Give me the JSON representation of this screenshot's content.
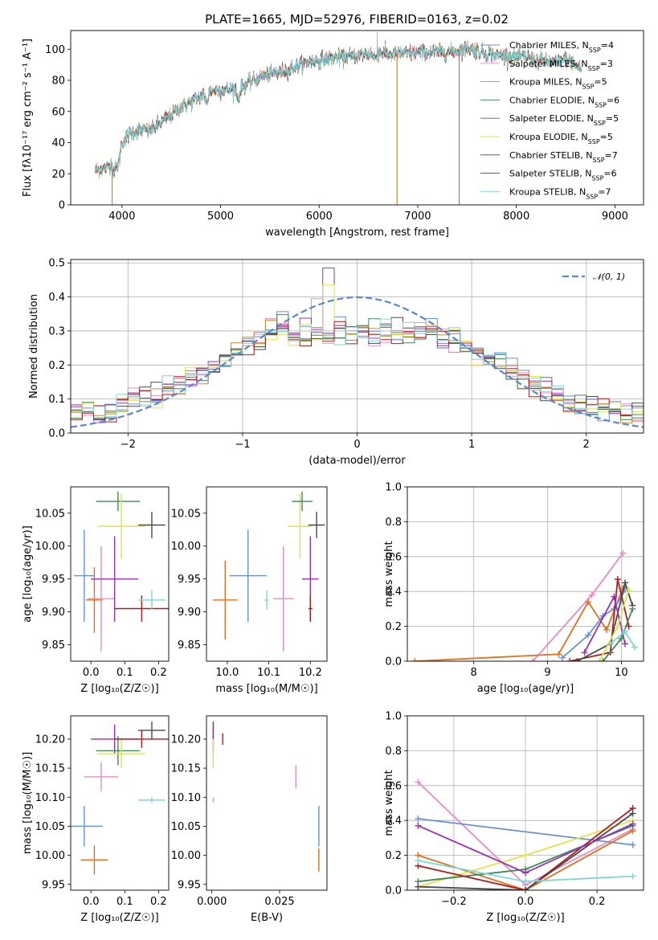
{
  "title": "PLATE=1665, MJD=52976, FIBERID=0163, z=0.02",
  "colors": {
    "Chabrier MILES": "#6b8fd6",
    "Salpeter MILES": "#e98ac6",
    "Kroupa MILES": "#c98a2a",
    "Chabrier ELODIE": "#3f8a55",
    "Salpeter ELODIE": "#9a2fb8",
    "Kroupa ELODIE": "#e0e34a",
    "Chabrier STELIB": "#4a4a4a",
    "Salpeter STELIB": "#b01b1b",
    "Kroupa STELIB": "#7fd6d6",
    "orange": "#e0701c",
    "lime": "#cde84a",
    "gaussian": "#5b86d0"
  },
  "chart_data": [
    {
      "id": "spectrum",
      "type": "line",
      "title": "PLATE=1665, MJD=52976, FIBERID=0163, z=0.02",
      "xlabel": "wavelength [Angstrom, rest frame]",
      "ylabel": "Flux [fλ10⁻¹⁷ erg cm⁻² s⁻¹ A⁻¹]",
      "xlim": [
        3480,
        9290
      ],
      "ylim": [
        0,
        112
      ],
      "xticks": [
        4000,
        5000,
        6000,
        7000,
        8000,
        9000
      ],
      "yticks": [
        0,
        20,
        40,
        60,
        80,
        100
      ],
      "legend_position": "right",
      "legend": [
        {
          "name": "Chabrier MILES",
          "sub": "SSP",
          "n": "4"
        },
        {
          "name": "Salpeter MILES",
          "sub": "SSP",
          "n": "3"
        },
        {
          "name": "Kroupa MILES",
          "sub": "SSP",
          "n": "5"
        },
        {
          "name": "Chabrier ELODIE",
          "sub": "SSP",
          "n": "6"
        },
        {
          "name": "Salpeter ELODIE",
          "sub": "SSP",
          "n": "5"
        },
        {
          "name": "Kroupa ELODIE",
          "sub": "SSP",
          "n": "5"
        },
        {
          "name": "Chabrier STELIB",
          "sub": "SSP",
          "n": "7"
        },
        {
          "name": "Salpeter STELIB",
          "sub": "SSP",
          "n": "6"
        },
        {
          "name": "Kroupa STELIB",
          "sub": "SSP",
          "n": "7"
        }
      ],
      "continuum": [
        [
          3730,
          22
        ],
        [
          3850,
          24
        ],
        [
          3950,
          30
        ],
        [
          4000,
          40
        ],
        [
          4100,
          47
        ],
        [
          4200,
          48
        ],
        [
          4300,
          48
        ],
        [
          4400,
          53
        ],
        [
          4500,
          58
        ],
        [
          4600,
          63
        ],
        [
          4700,
          66
        ],
        [
          4800,
          70
        ],
        [
          4900,
          73
        ],
        [
          5000,
          74
        ],
        [
          5100,
          74
        ],
        [
          5200,
          75
        ],
        [
          5300,
          79
        ],
        [
          5400,
          82
        ],
        [
          5500,
          84
        ],
        [
          5600,
          85
        ],
        [
          5700,
          87
        ],
        [
          5800,
          90
        ],
        [
          5900,
          92
        ],
        [
          6000,
          93
        ],
        [
          6100,
          94
        ],
        [
          6200,
          95
        ],
        [
          6300,
          95
        ],
        [
          6400,
          96
        ],
        [
          6500,
          97
        ],
        [
          6600,
          98
        ],
        [
          6700,
          97
        ],
        [
          6800,
          97
        ],
        [
          6900,
          97
        ],
        [
          7000,
          98
        ],
        [
          7100,
          98
        ],
        [
          7200,
          98
        ],
        [
          7300,
          98
        ],
        [
          7400,
          99
        ],
        [
          7500,
          101
        ],
        [
          7600,
          99
        ],
        [
          7700,
          97
        ],
        [
          7800,
          96
        ],
        [
          7900,
          96
        ],
        [
          8000,
          95
        ],
        [
          8100,
          95
        ],
        [
          8200,
          93
        ],
        [
          8300,
          92
        ],
        [
          8400,
          91
        ],
        [
          8500,
          94
        ],
        [
          8600,
          90
        ],
        [
          8660,
          87
        ]
      ],
      "dropouts": [
        {
          "x": 3900,
          "series": "Kroupa MILES"
        },
        {
          "x": 6790,
          "series": "Kroupa MILES"
        },
        {
          "x": 7420,
          "series": "orange"
        }
      ]
    },
    {
      "id": "residuals",
      "type": "histogram",
      "xlabel": "(data-model)/error",
      "ylabel": "Normed distribution",
      "xlim": [
        -2.5,
        2.5
      ],
      "ylim": [
        0,
        0.51
      ],
      "xticks": [
        -2,
        -1,
        0,
        1,
        2
      ],
      "yticks": [
        0.0,
        0.1,
        0.2,
        0.3,
        0.4,
        0.5
      ],
      "grid": true,
      "legend_position": "top-right",
      "gaussian_label": "𝒩(0, 1)",
      "bin_width": 0.1,
      "jitter_peak": [
        {
          "series": "Salpeter ELODIE",
          "x": -0.25,
          "y": 0.485
        },
        {
          "series": "Kroupa ELODIE",
          "x": -0.25,
          "y": 0.435
        },
        {
          "series": "Salpeter MILES",
          "x": -0.35,
          "y": 0.395
        }
      ]
    },
    {
      "id": "age-vs-Z",
      "type": "errorbar",
      "xlabel": "Z [log₁₀(Z/Z☉)]",
      "ylabel": "age  [log₁₀(age/yr)]",
      "xlim": [
        -0.06,
        0.23
      ],
      "ylim": [
        9.825,
        10.09
      ],
      "xticks": [
        0.0,
        0.1,
        0.2
      ],
      "yticks": [
        9.85,
        9.9,
        9.95,
        10.0,
        10.05
      ],
      "points": [
        {
          "series": "Chabrier MILES",
          "x": -0.02,
          "y": 9.955,
          "ex": 0.03,
          "ey": 0.07
        },
        {
          "series": "orange",
          "x": 0.01,
          "y": 9.918,
          "ex": 0.025,
          "ey": 0.05
        },
        {
          "series": "Salpeter MILES",
          "x": 0.03,
          "y": 9.92,
          "ex": 0.04,
          "ey": 0.08
        },
        {
          "series": "Salpeter ELODIE",
          "x": 0.07,
          "y": 9.95,
          "ex": 0.07,
          "ey": 0.065
        },
        {
          "series": "Chabrier ELODIE",
          "x": 0.08,
          "y": 10.068,
          "ex": 0.065,
          "ey": 0.015
        },
        {
          "series": "Kroupa ELODIE",
          "x": 0.09,
          "y": 10.03,
          "ex": 0.07,
          "ey": 0.05
        },
        {
          "series": "Salpeter STELIB",
          "x": 0.15,
          "y": 9.905,
          "ex": 0.08,
          "ey": 0.02
        },
        {
          "series": "Kroupa STELIB",
          "x": 0.18,
          "y": 9.918,
          "ex": 0.04,
          "ey": 0.015
        },
        {
          "series": "Chabrier STELIB",
          "x": 0.18,
          "y": 10.032,
          "ex": 0.04,
          "ey": 0.02
        }
      ]
    },
    {
      "id": "age-vs-mass",
      "type": "errorbar",
      "xlabel": "mass [log₁₀(M/M☉)]",
      "ylabel": "",
      "xlim": [
        9.95,
        10.24
      ],
      "ylim": [
        9.825,
        10.09
      ],
      "xticks": [
        10.0,
        10.1,
        10.2
      ],
      "yticks": [
        9.85,
        9.9,
        9.95,
        10.0,
        10.05
      ],
      "points": [
        {
          "series": "orange",
          "x": 9.995,
          "y": 9.918,
          "ex": 0.03,
          "ey": 0.06
        },
        {
          "series": "Chabrier MILES",
          "x": 10.05,
          "y": 9.955,
          "ex": 0.045,
          "ey": 0.07
        },
        {
          "series": "Kroupa STELIB",
          "x": 10.095,
          "y": 9.918,
          "ex": 0.005,
          "ey": 0.015
        },
        {
          "series": "Salpeter MILES",
          "x": 10.135,
          "y": 9.92,
          "ex": 0.025,
          "ey": 0.08
        },
        {
          "series": "Kroupa ELODIE",
          "x": 10.175,
          "y": 10.03,
          "ex": 0.03,
          "ey": 0.05
        },
        {
          "series": "Chabrier ELODIE",
          "x": 10.18,
          "y": 10.068,
          "ex": 0.025,
          "ey": 0.015
        },
        {
          "series": "Salpeter ELODIE",
          "x": 10.2,
          "y": 9.95,
          "ex": 0.02,
          "ey": 0.065
        },
        {
          "series": "Salpeter STELIB",
          "x": 10.2,
          "y": 9.905,
          "ex": 0.005,
          "ey": 0.02
        },
        {
          "series": "Chabrier STELIB",
          "x": 10.215,
          "y": 10.032,
          "ex": 0.02,
          "ey": 0.02
        }
      ]
    },
    {
      "id": "mass-weight-vs-age",
      "type": "line",
      "xlabel": "age  [log₁₀(age/yr)]",
      "ylabel": "mass weight",
      "xlim": [
        7.1,
        10.3
      ],
      "ylim": [
        0,
        1
      ],
      "xticks": [
        8,
        9,
        10
      ],
      "yticks": [
        0.0,
        0.2,
        0.4,
        0.6,
        0.8,
        1.0
      ],
      "grid": true,
      "series": [
        {
          "name": "Salpeter MILES",
          "points": [
            [
              8.8,
              0.0
            ],
            [
              9.6,
              0.38
            ],
            [
              10.02,
              0.62
            ]
          ]
        },
        {
          "name": "orange",
          "points": [
            [
              7.2,
              0.0
            ],
            [
              9.15,
              0.04
            ],
            [
              9.55,
              0.34
            ],
            [
              9.8,
              0.18
            ],
            [
              10.02,
              0.42
            ]
          ]
        },
        {
          "name": "Chabrier MILES",
          "points": [
            [
              9.2,
              0.02
            ],
            [
              9.55,
              0.15
            ],
            [
              9.75,
              0.26
            ],
            [
              9.9,
              0.3
            ],
            [
              10.05,
              0.41
            ]
          ]
        },
        {
          "name": "Salpeter STELIB",
          "points": [
            [
              9.3,
              0.0
            ],
            [
              9.85,
              0.05
            ],
            [
              9.95,
              0.47
            ],
            [
              10.1,
              0.2
            ]
          ]
        },
        {
          "name": "Chabrier STELIB",
          "points": [
            [
              9.4,
              0.0
            ],
            [
              9.85,
              0.1
            ],
            [
              10.05,
              0.45
            ],
            [
              10.15,
              0.32
            ]
          ]
        },
        {
          "name": "Salpeter ELODIE",
          "points": [
            [
              9.5,
              0.05
            ],
            [
              9.9,
              0.37
            ],
            [
              10.05,
              0.1
            ]
          ]
        },
        {
          "name": "Kroupa ELODIE",
          "points": [
            [
              9.7,
              0.0
            ],
            [
              9.95,
              0.2
            ],
            [
              10.1,
              0.41
            ]
          ]
        },
        {
          "name": "Chabrier ELODIE",
          "points": [
            [
              9.75,
              0.0
            ],
            [
              10.0,
              0.13
            ],
            [
              10.15,
              0.3
            ]
          ]
        },
        {
          "name": "Kroupa STELIB",
          "points": [
            [
              9.85,
              0.1
            ],
            [
              10.05,
              0.17
            ],
            [
              10.18,
              0.08
            ]
          ]
        }
      ]
    },
    {
      "id": "mass-vs-Z",
      "type": "errorbar",
      "xlabel": "Z [log₁₀(Z/Z☉)]",
      "ylabel": "mass [log₁₀(M/M☉)]",
      "xlim": [
        -0.06,
        0.23
      ],
      "ylim": [
        9.94,
        10.24
      ],
      "xticks": [
        0.0,
        0.1,
        0.2
      ],
      "yticks": [
        9.95,
        10.0,
        10.05,
        10.1,
        10.15,
        10.2
      ],
      "points": [
        {
          "series": "Chabrier MILES",
          "x": -0.02,
          "y": 10.05,
          "ex": 0.055,
          "ey": 0.035
        },
        {
          "series": "orange",
          "x": 0.01,
          "y": 9.992,
          "ex": 0.04,
          "ey": 0.025
        },
        {
          "series": "Salpeter MILES",
          "x": 0.03,
          "y": 10.135,
          "ex": 0.05,
          "ey": 0.025
        },
        {
          "series": "Salpeter ELODIE",
          "x": 0.07,
          "y": 10.2,
          "ex": 0.07,
          "ey": 0.025
        },
        {
          "series": "Chabrier ELODIE",
          "x": 0.08,
          "y": 10.18,
          "ex": 0.065,
          "ey": 0.025
        },
        {
          "series": "Kroupa ELODIE",
          "x": 0.09,
          "y": 10.175,
          "ex": 0.07,
          "ey": 0.025
        },
        {
          "series": "Kroupa STELIB",
          "x": 0.18,
          "y": 10.095,
          "ex": 0.04,
          "ey": 0.005
        },
        {
          "series": "Salpeter STELIB",
          "x": 0.15,
          "y": 10.2,
          "ex": 0.08,
          "ey": 0.015
        },
        {
          "series": "Chabrier STELIB",
          "x": 0.18,
          "y": 10.215,
          "ex": 0.04,
          "ey": 0.015
        }
      ]
    },
    {
      "id": "mass-vs-EBV",
      "type": "errorbar",
      "xlabel": "E(B-V)",
      "ylabel": "",
      "xlim": [
        -0.002,
        0.0425
      ],
      "ylim": [
        9.94,
        10.24
      ],
      "xticks": [
        0.0,
        0.025
      ],
      "xtick_labels": [
        "0.000",
        "0.025"
      ],
      "yticks": [
        9.95,
        10.0,
        10.05,
        10.1,
        10.15,
        10.2
      ],
      "points": [
        {
          "series": "Chabrier STELIB",
          "x": 0.0005,
          "y": 10.215,
          "ex": 0,
          "ey": 0.015
        },
        {
          "series": "Salpeter ELODIE",
          "x": 0.0005,
          "y": 10.2,
          "ex": 0,
          "ey": 0.025
        },
        {
          "series": "Kroupa ELODIE",
          "x": 0.0005,
          "y": 10.175,
          "ex": 0,
          "ey": 0.025
        },
        {
          "series": "Kroupa STELIB",
          "x": 0.0005,
          "y": 10.095,
          "ex": 0,
          "ey": 0.005
        },
        {
          "series": "Salpeter STELIB",
          "x": 0.004,
          "y": 10.2,
          "ex": 0,
          "ey": 0.01
        },
        {
          "series": "Salpeter MILES",
          "x": 0.031,
          "y": 10.135,
          "ex": 0,
          "ey": 0.02
        },
        {
          "series": "Chabrier MILES",
          "x": 0.0395,
          "y": 10.05,
          "ex": 0,
          "ey": 0.035
        },
        {
          "series": "orange",
          "x": 0.0395,
          "y": 9.992,
          "ex": 0,
          "ey": 0.02
        }
      ]
    },
    {
      "id": "mass-weight-vs-Z",
      "type": "line",
      "xlabel": "Z [log₁₀(Z/Z☉)]",
      "ylabel": "mass weight",
      "xlim": [
        -0.33,
        0.33
      ],
      "ylim": [
        0,
        1
      ],
      "xticks": [
        -0.2,
        0.0,
        0.2
      ],
      "yticks": [
        0.0,
        0.2,
        0.4,
        0.6,
        0.8,
        1.0
      ],
      "grid": true,
      "series": [
        {
          "name": "Salpeter MILES",
          "points": [
            [
              -0.3,
              0.62
            ],
            [
              0.0,
              0.03
            ],
            [
              0.3,
              0.35
            ]
          ]
        },
        {
          "name": "Chabrier MILES",
          "points": [
            [
              -0.3,
              0.41
            ],
            [
              0.3,
              0.26
            ]
          ]
        },
        {
          "name": "orange",
          "points": [
            [
              -0.3,
              0.2
            ],
            [
              0.0,
              0.0
            ],
            [
              0.3,
              0.34
            ]
          ]
        },
        {
          "name": "Kroupa ELODIE",
          "points": [
            [
              -0.3,
              0.02
            ],
            [
              0.0,
              0.2
            ],
            [
              0.3,
              0.4
            ]
          ]
        },
        {
          "name": "Chabrier ELODIE",
          "points": [
            [
              -0.3,
              0.05
            ],
            [
              0.0,
              0.12
            ],
            [
              0.3,
              0.37
            ]
          ]
        },
        {
          "name": "Salpeter STELIB",
          "points": [
            [
              -0.3,
              0.14
            ],
            [
              0.0,
              0.0
            ],
            [
              0.3,
              0.47
            ]
          ]
        },
        {
          "name": "Chabrier STELIB",
          "points": [
            [
              -0.3,
              0.02
            ],
            [
              0.0,
              0.0
            ],
            [
              0.3,
              0.44
            ]
          ]
        },
        {
          "name": "Salpeter ELODIE",
          "points": [
            [
              -0.3,
              0.37
            ],
            [
              0.0,
              0.1
            ],
            [
              0.3,
              0.38
            ]
          ]
        },
        {
          "name": "Kroupa STELIB",
          "points": [
            [
              -0.3,
              0.17
            ],
            [
              0.0,
              0.05
            ],
            [
              0.3,
              0.08
            ]
          ]
        }
      ]
    }
  ]
}
